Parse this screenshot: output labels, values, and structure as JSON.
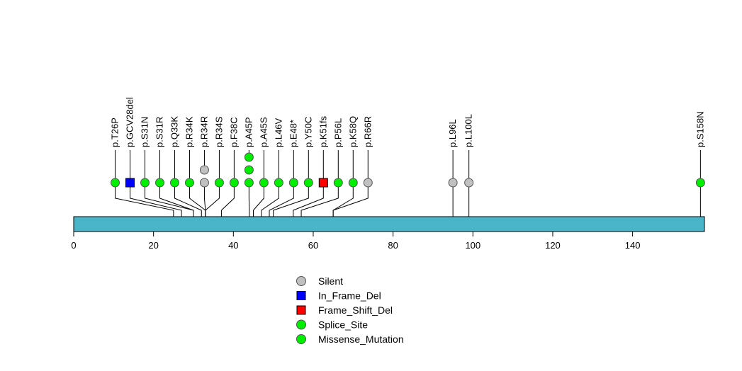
{
  "chart_data": {
    "type": "lollipop",
    "title": "",
    "xlabel": "",
    "ylabel": "",
    "xlim": [
      0,
      158
    ],
    "x_ticks": [
      0,
      20,
      40,
      60,
      80,
      100,
      120,
      140
    ],
    "protein_length": 158,
    "colors": {
      "protein_bar": "#4ab5c8",
      "Silent": "#c0c0c0",
      "In_Frame_Del": "#0000ff",
      "Frame_Shift_Del": "#ff0000",
      "Splice_Site": "#00ee00",
      "Missense_Mutation": "#00ee00"
    },
    "mutations": [
      {
        "label": "p.T26P",
        "position": 25,
        "type": "Missense_Mutation",
        "count": 1
      },
      {
        "label": "p.GCV28del",
        "position": 27,
        "type": "In_Frame_Del",
        "count": 1
      },
      {
        "label": "p.S31N",
        "position": 30,
        "type": "Missense_Mutation",
        "count": 1
      },
      {
        "label": "p.S31R",
        "position": 30,
        "type": "Missense_Mutation",
        "count": 1
      },
      {
        "label": "p.Q33K",
        "position": 32,
        "type": "Missense_Mutation",
        "count": 1
      },
      {
        "label": "p.R34K",
        "position": 33,
        "type": "Missense_Mutation",
        "count": 1
      },
      {
        "label": "p.R34R",
        "position": 33,
        "type": "Silent",
        "count": 2
      },
      {
        "label": "p.R34S",
        "position": 33,
        "type": "Missense_Mutation",
        "count": 1
      },
      {
        "label": "p.F38C",
        "position": 37,
        "type": "Missense_Mutation",
        "count": 1
      },
      {
        "label": "p.A45P",
        "position": 44,
        "type": "Missense_Mutation",
        "count": 3
      },
      {
        "label": "p.A45S",
        "position": 45,
        "type": "Missense_Mutation",
        "count": 1
      },
      {
        "label": "p.L46V",
        "position": 47,
        "type": "Missense_Mutation",
        "count": 1
      },
      {
        "label": "p.E48*",
        "position": 49,
        "type": "Missense_Mutation",
        "count": 1
      },
      {
        "label": "p.Y50C",
        "position": 50,
        "type": "Missense_Mutation",
        "count": 1
      },
      {
        "label": "p.K51fs",
        "position": 55,
        "type": "Frame_Shift_Del",
        "count": 1
      },
      {
        "label": "p.P56L",
        "position": 57,
        "type": "Missense_Mutation",
        "count": 1
      },
      {
        "label": "p.K58Q",
        "position": 65,
        "type": "Missense_Mutation",
        "count": 1
      },
      {
        "label": "p.R66R",
        "position": 65,
        "type": "Silent",
        "count": 1
      },
      {
        "label": "p.L96L",
        "position": 95,
        "type": "Silent",
        "count": 1
      },
      {
        "label": "p.L100L",
        "position": 99,
        "type": "Silent",
        "count": 1
      },
      {
        "label": "p.S158N",
        "position": 157,
        "type": "Missense_Mutation",
        "count": 1
      }
    ],
    "legend": [
      {
        "label": "Silent",
        "shape": "circle",
        "type": "Silent"
      },
      {
        "label": "In_Frame_Del",
        "shape": "square",
        "type": "In_Frame_Del"
      },
      {
        "label": "Frame_Shift_Del",
        "shape": "square",
        "type": "Frame_Shift_Del"
      },
      {
        "label": "Splice_Site",
        "shape": "circle",
        "type": "Splice_Site"
      },
      {
        "label": "Missense_Mutation",
        "shape": "circle",
        "type": "Missense_Mutation"
      }
    ]
  }
}
